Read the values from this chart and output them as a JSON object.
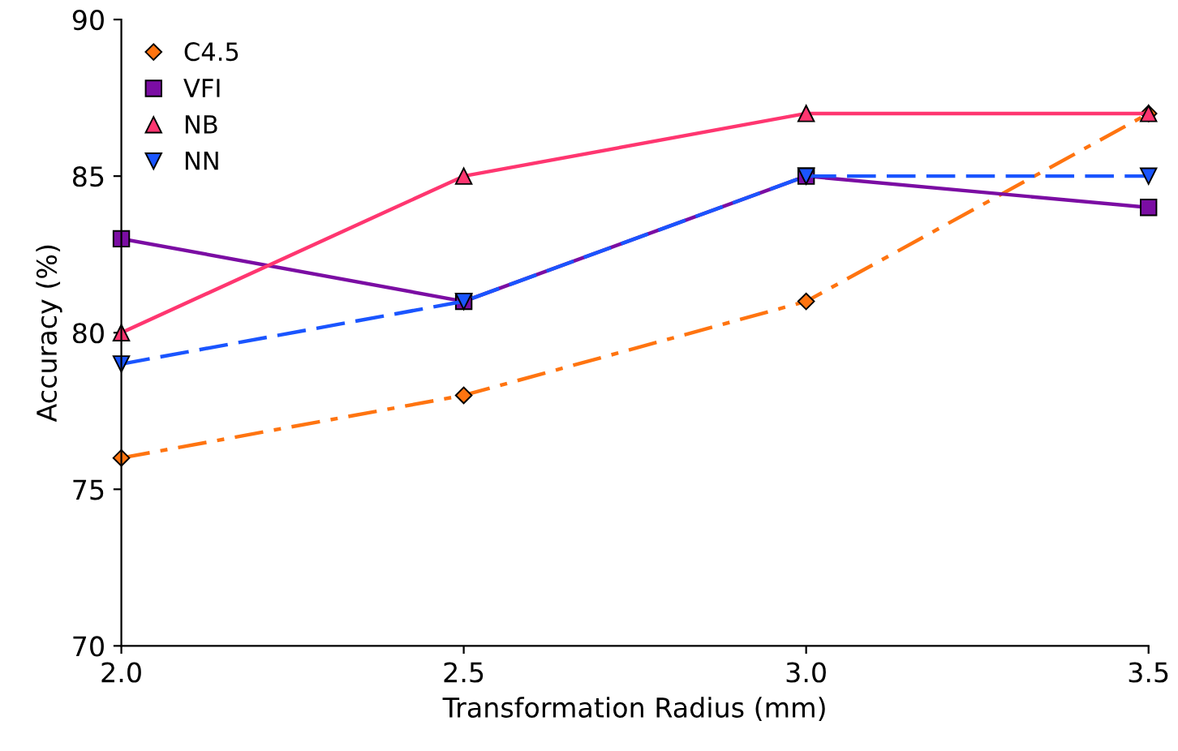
{
  "chart_data": {
    "type": "line",
    "xlabel": "Transformation Radius (mm)",
    "ylabel": "Accuracy (%)",
    "x": [
      2.0,
      2.5,
      3.0,
      3.5
    ],
    "series": [
      {
        "name": "C4.5",
        "color": "#ff7410",
        "values": [
          76,
          78,
          81,
          87
        ],
        "marker": "diamond",
        "line_style": "dashdot"
      },
      {
        "name": "VFI",
        "color": "#7b0da3",
        "values": [
          83,
          81,
          85,
          84
        ],
        "marker": "square",
        "line_style": "solid"
      },
      {
        "name": "NB",
        "color": "#ff3670",
        "values": [
          80,
          85,
          87,
          87
        ],
        "marker": "triangle",
        "line_style": "solid"
      },
      {
        "name": "NN",
        "color": "#1a55ff",
        "values": [
          79,
          81,
          85,
          85
        ],
        "marker": "triangle_down",
        "line_style": "dashed"
      }
    ],
    "xlim": [
      2.0,
      3.5
    ],
    "ylim": [
      70,
      90
    ],
    "xticks": [
      {
        "value": 2.0,
        "label": "2.0"
      },
      {
        "value": 2.5,
        "label": "2.5"
      },
      {
        "value": 3.0,
        "label": "3.0"
      },
      {
        "value": 3.5,
        "label": "3.5"
      }
    ],
    "yticks": [
      70,
      75,
      80,
      85,
      90
    ],
    "legend": "top left",
    "grid": false
  }
}
